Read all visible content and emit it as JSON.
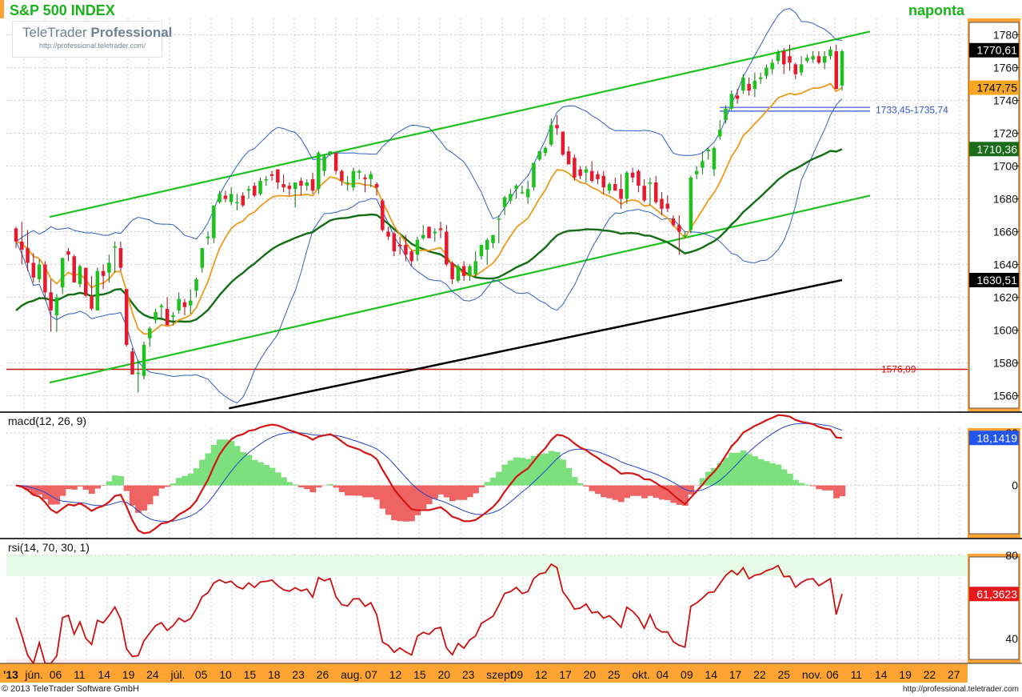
{
  "header": {
    "title": "S&P 500 INDEX",
    "right_label": "naponta",
    "accent": "#1ec11e",
    "title_bg": "#ffa433"
  },
  "logo": {
    "name_light": "TeleTrader",
    "name_bold": "Professional",
    "url": "http://professional.teletrader.com/"
  },
  "footer": {
    "copyright": "© 2013 TeleTrader Software GmbH",
    "url": "http://professional.teletrader.com"
  },
  "chart_data": [
    {
      "type": "candlestick",
      "title": "S&P 500 INDEX",
      "ylim": [
        1550,
        1790
      ],
      "y_ticks": [
        1560,
        1580,
        1600,
        1620,
        1640,
        1660,
        1680,
        1700,
        1720,
        1740,
        1760,
        1780
      ],
      "x_tick_labels": [
        "'13",
        "jún.",
        "06",
        "11",
        "14",
        "19",
        "24",
        "júl.",
        "05",
        "10",
        "15",
        "18",
        "23",
        "26",
        "aug.",
        "07",
        "12",
        "15",
        "20",
        "23",
        "szept.",
        "09",
        "12",
        "17",
        "20",
        "25",
        "okt.",
        "04",
        "09",
        "14",
        "17",
        "22",
        "25",
        "nov.",
        "06",
        "11",
        "14",
        "19",
        "22",
        "27"
      ],
      "colors": {
        "up": "#1ec11e",
        "down": "#e8192c"
      },
      "candles_ohlc": [
        [
          1662,
          1663,
          1650,
          1654
        ],
        [
          1654,
          1666,
          1640,
          1649
        ],
        [
          1650,
          1661,
          1636,
          1641
        ],
        [
          1641,
          1647,
          1629,
          1632
        ],
        [
          1631,
          1643,
          1629,
          1640
        ],
        [
          1640,
          1642,
          1618,
          1623
        ],
        [
          1623,
          1631,
          1599,
          1612
        ],
        [
          1609,
          1622,
          1599,
          1620
        ],
        [
          1626,
          1644,
          1622,
          1644
        ],
        [
          1648,
          1650,
          1642,
          1646
        ],
        [
          1645,
          1646,
          1629,
          1629
        ],
        [
          1628,
          1640,
          1626,
          1639
        ],
        [
          1638,
          1638,
          1620,
          1621
        ],
        [
          1621,
          1633,
          1612,
          1613
        ],
        [
          1612,
          1638,
          1612,
          1636
        ],
        [
          1636,
          1640,
          1625,
          1633
        ],
        [
          1635,
          1646,
          1629,
          1641
        ],
        [
          1651,
          1654,
          1635,
          1651
        ],
        [
          1650,
          1654,
          1636,
          1638
        ],
        [
          1625,
          1625,
          1590,
          1591
        ],
        [
          1587,
          1589,
          1573,
          1573
        ],
        [
          1574,
          1582,
          1562,
          1574
        ],
        [
          1572,
          1593,
          1570,
          1591
        ],
        [
          1595,
          1602,
          1590,
          1601
        ],
        [
          1606,
          1613,
          1604,
          1611
        ],
        [
          1614,
          1616,
          1606,
          1615
        ],
        [
          1613,
          1620,
          1603,
          1603
        ],
        [
          1608,
          1611,
          1603,
          1609
        ],
        [
          1612,
          1623,
          1610,
          1619
        ],
        [
          1617,
          1619,
          1609,
          1614
        ],
        [
          1615,
          1625,
          1610,
          1618
        ],
        [
          1624,
          1632,
          1620,
          1631
        ],
        [
          1638,
          1650,
          1635,
          1650
        ],
        [
          1656,
          1660,
          1652,
          1657
        ],
        [
          1656,
          1676,
          1653,
          1676
        ],
        [
          1678,
          1685,
          1677,
          1683
        ],
        [
          1682,
          1685,
          1678,
          1680
        ],
        [
          1678,
          1687,
          1676,
          1683
        ],
        [
          1678,
          1683,
          1673,
          1678
        ],
        [
          1682,
          1684,
          1675,
          1676
        ],
        [
          1685,
          1688,
          1680,
          1686
        ],
        [
          1688,
          1690,
          1681,
          1682
        ],
        [
          1683,
          1693,
          1682,
          1691
        ],
        [
          1692,
          1694,
          1688,
          1692
        ],
        [
          1695,
          1697,
          1691,
          1694
        ],
        [
          1698,
          1698,
          1686,
          1690
        ],
        [
          1689,
          1695,
          1684,
          1687
        ],
        [
          1688,
          1690,
          1682,
          1686
        ],
        [
          1686,
          1690,
          1675,
          1690
        ],
        [
          1691,
          1693,
          1682,
          1688
        ],
        [
          1688,
          1692,
          1685,
          1690
        ],
        [
          1692,
          1696,
          1683,
          1685
        ],
        [
          1686,
          1709,
          1683,
          1708
        ],
        [
          1697,
          1707,
          1694,
          1706
        ],
        [
          1707,
          1709,
          1706,
          1709
        ],
        [
          1708,
          1708,
          1695,
          1697
        ],
        [
          1697,
          1698,
          1688,
          1691
        ],
        [
          1690,
          1694,
          1685,
          1690
        ],
        [
          1687,
          1699,
          1685,
          1697
        ],
        [
          1696,
          1698,
          1692,
          1697
        ],
        [
          1693,
          1695,
          1684,
          1692
        ],
        [
          1692,
          1697,
          1687,
          1695
        ],
        [
          1689,
          1690,
          1682,
          1687
        ],
        [
          1679,
          1680,
          1660,
          1661
        ],
        [
          1660,
          1663,
          1655,
          1657
        ],
        [
          1659,
          1660,
          1645,
          1648
        ],
        [
          1652,
          1657,
          1646,
          1651
        ],
        [
          1652,
          1658,
          1642,
          1646
        ],
        [
          1648,
          1649,
          1639,
          1642
        ],
        [
          1646,
          1657,
          1642,
          1655
        ],
        [
          1656,
          1664,
          1655,
          1658
        ],
        [
          1663,
          1663,
          1656,
          1656
        ],
        [
          1659,
          1662,
          1654,
          1660
        ],
        [
          1662,
          1666,
          1656,
          1661
        ],
        [
          1660,
          1664,
          1639,
          1640
        ],
        [
          1641,
          1642,
          1628,
          1631
        ],
        [
          1630,
          1640,
          1629,
          1639
        ],
        [
          1639,
          1642,
          1630,
          1633
        ],
        [
          1633,
          1640,
          1630,
          1639
        ],
        [
          1634,
          1648,
          1632,
          1642
        ],
        [
          1645,
          1652,
          1643,
          1652
        ],
        [
          1649,
          1656,
          1640,
          1655
        ],
        [
          1653,
          1658,
          1650,
          1658
        ],
        [
          1668,
          1670,
          1653,
          1668
        ],
        [
          1675,
          1682,
          1670,
          1681
        ],
        [
          1679,
          1686,
          1677,
          1683
        ],
        [
          1686,
          1689,
          1680,
          1688
        ],
        [
          1684,
          1688,
          1683,
          1684
        ],
        [
          1681,
          1691,
          1677,
          1686
        ],
        [
          1687,
          1702,
          1685,
          1702
        ],
        [
          1704,
          1709,
          1703,
          1709
        ],
        [
          1708,
          1712,
          1706,
          1711
        ],
        [
          1713,
          1729,
          1712,
          1725
        ],
        [
          1725,
          1731,
          1719,
          1723
        ],
        [
          1721,
          1721,
          1706,
          1707
        ],
        [
          1709,
          1712,
          1701,
          1701
        ],
        [
          1705,
          1707,
          1691,
          1693
        ],
        [
          1698,
          1700,
          1692,
          1694
        ],
        [
          1696,
          1700,
          1690,
          1698
        ],
        [
          1697,
          1703,
          1690,
          1691
        ],
        [
          1695,
          1697,
          1689,
          1692
        ],
        [
          1694,
          1697,
          1683,
          1687
        ],
        [
          1685,
          1690,
          1683,
          1689
        ],
        [
          1689,
          1693,
          1685,
          1685
        ],
        [
          1686,
          1695,
          1674,
          1680
        ],
        [
          1680,
          1697,
          1677,
          1696
        ],
        [
          1696,
          1699,
          1690,
          1693
        ],
        [
          1697,
          1698,
          1684,
          1688
        ],
        [
          1688,
          1692,
          1678,
          1679
        ],
        [
          1690,
          1693,
          1676,
          1690
        ],
        [
          1690,
          1694,
          1677,
          1678
        ],
        [
          1680,
          1684,
          1670,
          1674
        ],
        [
          1677,
          1682,
          1672,
          1674
        ],
        [
          1668,
          1670,
          1663,
          1664
        ],
        [
          1664,
          1670,
          1646,
          1660
        ],
        [
          1657,
          1660,
          1656,
          1658
        ],
        [
          1661,
          1694,
          1659,
          1693
        ],
        [
          1695,
          1700,
          1692,
          1697
        ],
        [
          1699,
          1709,
          1695,
          1703
        ],
        [
          1709,
          1711,
          1704,
          1710
        ],
        [
          1698,
          1712,
          1694,
          1711
        ],
        [
          1718,
          1728,
          1716,
          1722
        ],
        [
          1728,
          1737,
          1726,
          1735
        ],
        [
          1735,
          1746,
          1734,
          1744
        ],
        [
          1743,
          1747,
          1738,
          1741
        ],
        [
          1746,
          1756,
          1744,
          1754
        ],
        [
          1750,
          1754,
          1743,
          1746
        ],
        [
          1747,
          1757,
          1742,
          1752
        ],
        [
          1753,
          1757,
          1750,
          1754
        ],
        [
          1755,
          1762,
          1753,
          1760
        ],
        [
          1759,
          1765,
          1756,
          1763
        ],
        [
          1764,
          1771,
          1762,
          1769
        ],
        [
          1770,
          1772,
          1756,
          1762
        ],
        [
          1767,
          1774,
          1758,
          1763
        ],
        [
          1762,
          1763,
          1753,
          1756
        ],
        [
          1757,
          1767,
          1755,
          1762
        ],
        [
          1764,
          1768,
          1763,
          1766
        ],
        [
          1765,
          1770,
          1763,
          1767
        ],
        [
          1767,
          1770,
          1762,
          1763
        ],
        [
          1763,
          1770,
          1759,
          1767
        ],
        [
          1767,
          1773,
          1765,
          1771
        ],
        [
          1770,
          1774,
          1747,
          1747
        ],
        [
          1749,
          1771,
          1746,
          1770
        ]
      ],
      "value_labels": [
        {
          "text": "1770,61",
          "value": 1770.61,
          "bg": "#000000",
          "fg": "#ffffff"
        },
        {
          "text": "1747,75",
          "value": 1747.75,
          "bg": "#f5a623",
          "fg": "#000000"
        },
        {
          "text": "1710,36",
          "value": 1710.36,
          "bg": "#1a6b1a",
          "fg": "#ffffff"
        },
        {
          "text": "1630,51",
          "value": 1630.51,
          "bg": "#000000",
          "fg": "#ffffff"
        }
      ],
      "levels": [
        {
          "text": "1733,45-1735,74",
          "from": 1733.45,
          "to": 1735.74,
          "color": "#3355cc"
        },
        {
          "text": "1576,09",
          "value": 1576.09,
          "color": "#cc1111"
        }
      ]
    },
    {
      "type": "macd",
      "title": "macd(12, 26, 9)",
      "ylim": [
        -20,
        28
      ],
      "y_ticks": [
        0,
        20
      ],
      "current_label": "18,1419",
      "current_value": 18.14,
      "colors": {
        "macd": "#d41515",
        "signal": "#2244cc",
        "hist_pos": "#7ce07c",
        "hist_neg": "#ee6464"
      }
    },
    {
      "type": "rsi",
      "title": "rsi(14, 70, 30, 1)",
      "ylim": [
        28,
        88
      ],
      "y_ticks": [
        40,
        80
      ],
      "bands": {
        "upper": 70,
        "lower": 30
      },
      "current_label": "61,3623",
      "current_value": 61.36,
      "colors": {
        "line": "#cc1111"
      }
    }
  ]
}
